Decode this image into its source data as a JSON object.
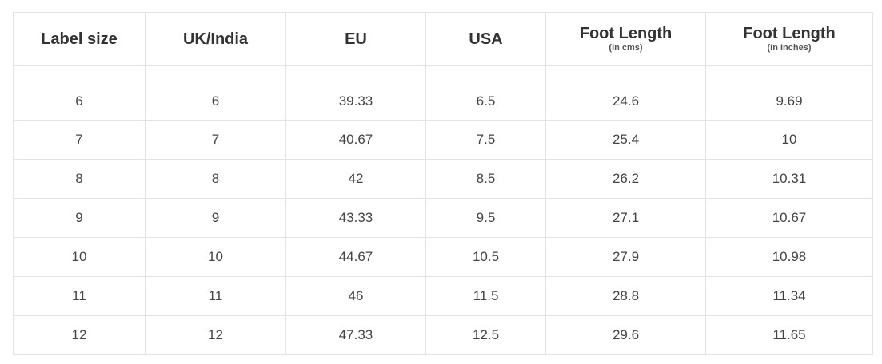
{
  "table": {
    "headers": [
      {
        "label": "Label size",
        "sub": ""
      },
      {
        "label": "UK/India",
        "sub": ""
      },
      {
        "label": "EU",
        "sub": ""
      },
      {
        "label": "USA",
        "sub": ""
      },
      {
        "label": "Foot Length",
        "sub": "(In cms)"
      },
      {
        "label": "Foot Length",
        "sub": "(In Inches)"
      }
    ],
    "rows": [
      [
        "6",
        "6",
        "39.33",
        "6.5",
        "24.6",
        "9.69"
      ],
      [
        "7",
        "7",
        "40.67",
        "7.5",
        "25.4",
        "10"
      ],
      [
        "8",
        "8",
        "42",
        "8.5",
        "26.2",
        "10.31"
      ],
      [
        "9",
        "9",
        "43.33",
        "9.5",
        "27.1",
        "10.67"
      ],
      [
        "10",
        "10",
        "44.67",
        "10.5",
        "27.9",
        "10.98"
      ],
      [
        "11",
        "11",
        "46",
        "11.5",
        "28.8",
        "11.34"
      ],
      [
        "12",
        "12",
        "47.33",
        "12.5",
        "29.6",
        "11.65"
      ]
    ]
  }
}
